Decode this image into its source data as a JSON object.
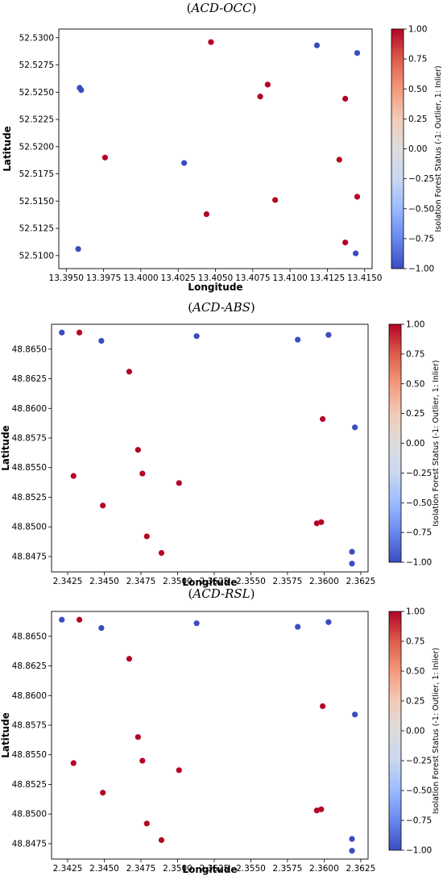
{
  "colorbar": {
    "label": "Isolation Forest Status (-1: Outlier, 1: Inlier)",
    "ticks": [
      "1.00",
      "0.75",
      "0.50",
      "0.25",
      "0.00",
      "−0.25",
      "−0.50",
      "−0.75",
      "−1.00"
    ],
    "stops": [
      "#3b4cc0",
      "#6788ee",
      "#9abbff",
      "#c9d7f0",
      "#dddcdc",
      "#f2cbb7",
      "#f49a7b",
      "#dc5d4a",
      "#b40426"
    ]
  },
  "chart_data": [
    {
      "type": "scatter",
      "title_prefix": "(",
      "title": "ACD-OCC",
      "title_suffix": ")",
      "xlabel": "Longitude",
      "ylabel": "Latitude",
      "xlim": [
        13.3945,
        13.4155
      ],
      "ylim": [
        52.5088,
        52.5308
      ],
      "xticks": [
        "13.3950",
        "13.3975",
        "13.4000",
        "13.4025",
        "13.4050",
        "13.4075",
        "13.4100",
        "13.4125",
        "13.4150"
      ],
      "xtick_values": [
        13.395,
        13.3975,
        13.4,
        13.4025,
        13.405,
        13.4075,
        13.41,
        13.4125,
        13.415
      ],
      "yticks": [
        "52.5300",
        "52.5275",
        "52.5250",
        "52.5225",
        "52.5200",
        "52.5175",
        "52.5150",
        "52.5125",
        "52.5100"
      ],
      "ytick_values": [
        52.53,
        52.5275,
        52.525,
        52.5225,
        52.52,
        52.5175,
        52.515,
        52.5125,
        52.51
      ],
      "grid": false,
      "colors": {
        "outlier": "#3b4cc0",
        "inlier": "#b40426"
      },
      "points": [
        {
          "x": 13.3959,
          "y": 52.5254,
          "status": -1
        },
        {
          "x": 13.396,
          "y": 52.5252,
          "status": -1
        },
        {
          "x": 13.3958,
          "y": 52.5106,
          "status": -1
        },
        {
          "x": 13.4029,
          "y": 52.5185,
          "status": -1
        },
        {
          "x": 13.4118,
          "y": 52.5293,
          "status": -1
        },
        {
          "x": 13.4145,
          "y": 52.5286,
          "status": -1
        },
        {
          "x": 13.4144,
          "y": 52.5102,
          "status": -1
        },
        {
          "x": 13.3976,
          "y": 52.519,
          "status": 1
        },
        {
          "x": 13.4047,
          "y": 52.5296,
          "status": 1
        },
        {
          "x": 13.4044,
          "y": 52.5138,
          "status": 1
        },
        {
          "x": 13.408,
          "y": 52.5246,
          "status": 1
        },
        {
          "x": 13.4085,
          "y": 52.5257,
          "status": 1
        },
        {
          "x": 13.409,
          "y": 52.5151,
          "status": 1
        },
        {
          "x": 13.4133,
          "y": 52.5188,
          "status": 1
        },
        {
          "x": 13.4137,
          "y": 52.5244,
          "status": 1
        },
        {
          "x": 13.4145,
          "y": 52.5154,
          "status": 1
        },
        {
          "x": 13.4137,
          "y": 52.5112,
          "status": 1
        }
      ]
    },
    {
      "type": "scatter",
      "title_prefix": "(",
      "title": "ACD-ABS",
      "title_suffix": ")",
      "xlabel": "Longitude",
      "ylabel": "Latitude",
      "xlim": [
        2.3414,
        2.363
      ],
      "ylim": [
        48.8462,
        48.8671
      ],
      "xticks": [
        "2.3425",
        "2.3450",
        "2.3475",
        "2.3500",
        "2.3525",
        "2.3550",
        "2.3575",
        "2.3600",
        "2.3625"
      ],
      "xtick_values": [
        2.3425,
        2.345,
        2.3475,
        2.35,
        2.3525,
        2.355,
        2.3575,
        2.36,
        2.3625
      ],
      "yticks": [
        "48.8650",
        "48.8625",
        "48.8600",
        "48.8575",
        "48.8550",
        "48.8525",
        "48.8500",
        "48.8475"
      ],
      "ytick_values": [
        48.865,
        48.8625,
        48.86,
        48.8575,
        48.855,
        48.8525,
        48.85,
        48.8475
      ],
      "grid": false,
      "colors": {
        "outlier": "#3b4cc0",
        "inlier": "#b40426"
      },
      "points": [
        {
          "x": 2.3421,
          "y": 48.8664,
          "status": -1
        },
        {
          "x": 2.3448,
          "y": 48.8657,
          "status": -1
        },
        {
          "x": 2.3513,
          "y": 48.8661,
          "status": -1
        },
        {
          "x": 2.3582,
          "y": 48.8658,
          "status": -1
        },
        {
          "x": 2.3603,
          "y": 48.8662,
          "status": -1
        },
        {
          "x": 2.3621,
          "y": 48.8584,
          "status": -1
        },
        {
          "x": 2.3619,
          "y": 48.8479,
          "status": -1
        },
        {
          "x": 2.3619,
          "y": 48.8469,
          "status": -1
        },
        {
          "x": 2.3433,
          "y": 48.8664,
          "status": 1
        },
        {
          "x": 2.3467,
          "y": 48.8631,
          "status": 1
        },
        {
          "x": 2.3429,
          "y": 48.8543,
          "status": 1
        },
        {
          "x": 2.3449,
          "y": 48.8518,
          "status": 1
        },
        {
          "x": 2.3473,
          "y": 48.8565,
          "status": 1
        },
        {
          "x": 2.3476,
          "y": 48.8545,
          "status": 1
        },
        {
          "x": 2.3479,
          "y": 48.8492,
          "status": 1
        },
        {
          "x": 2.3489,
          "y": 48.8478,
          "status": 1
        },
        {
          "x": 2.3501,
          "y": 48.8537,
          "status": 1
        },
        {
          "x": 2.3599,
          "y": 48.8591,
          "status": 1
        },
        {
          "x": 2.3595,
          "y": 48.8503,
          "status": 1
        },
        {
          "x": 2.3598,
          "y": 48.8504,
          "status": 1
        }
      ]
    },
    {
      "type": "scatter",
      "title_prefix": "(",
      "title": "ACD-RSL",
      "title_suffix": ")",
      "xlabel": "Longitude",
      "ylabel": "Latitude",
      "xlim": [
        2.3414,
        2.363
      ],
      "ylim": [
        48.8462,
        48.8671
      ],
      "xticks": [
        "2.3425",
        "2.3450",
        "2.3475",
        "2.3500",
        "2.3525",
        "2.3550",
        "2.3575",
        "2.3600",
        "2.3625"
      ],
      "xtick_values": [
        2.3425,
        2.345,
        2.3475,
        2.35,
        2.3525,
        2.355,
        2.3575,
        2.36,
        2.3625
      ],
      "yticks": [
        "48.8650",
        "48.8625",
        "48.8600",
        "48.8575",
        "48.8550",
        "48.8525",
        "48.8500",
        "48.8475"
      ],
      "ytick_values": [
        48.865,
        48.8625,
        48.86,
        48.8575,
        48.855,
        48.8525,
        48.85,
        48.8475
      ],
      "grid": false,
      "colors": {
        "outlier": "#3b4cc0",
        "inlier": "#b40426"
      },
      "points": [
        {
          "x": 2.3421,
          "y": 48.8664,
          "status": -1
        },
        {
          "x": 2.3448,
          "y": 48.8657,
          "status": -1
        },
        {
          "x": 2.3513,
          "y": 48.8661,
          "status": -1
        },
        {
          "x": 2.3582,
          "y": 48.8658,
          "status": -1
        },
        {
          "x": 2.3603,
          "y": 48.8662,
          "status": -1
        },
        {
          "x": 2.3621,
          "y": 48.8584,
          "status": -1
        },
        {
          "x": 2.3619,
          "y": 48.8479,
          "status": -1
        },
        {
          "x": 2.3619,
          "y": 48.8469,
          "status": -1
        },
        {
          "x": 2.3433,
          "y": 48.8664,
          "status": 1
        },
        {
          "x": 2.3467,
          "y": 48.8631,
          "status": 1
        },
        {
          "x": 2.3429,
          "y": 48.8543,
          "status": 1
        },
        {
          "x": 2.3449,
          "y": 48.8518,
          "status": 1
        },
        {
          "x": 2.3473,
          "y": 48.8565,
          "status": 1
        },
        {
          "x": 2.3476,
          "y": 48.8545,
          "status": 1
        },
        {
          "x": 2.3479,
          "y": 48.8492,
          "status": 1
        },
        {
          "x": 2.3489,
          "y": 48.8478,
          "status": 1
        },
        {
          "x": 2.3501,
          "y": 48.8537,
          "status": 1
        },
        {
          "x": 2.3599,
          "y": 48.8591,
          "status": 1
        },
        {
          "x": 2.3595,
          "y": 48.8503,
          "status": 1
        },
        {
          "x": 2.3598,
          "y": 48.8504,
          "status": 1
        }
      ]
    }
  ]
}
